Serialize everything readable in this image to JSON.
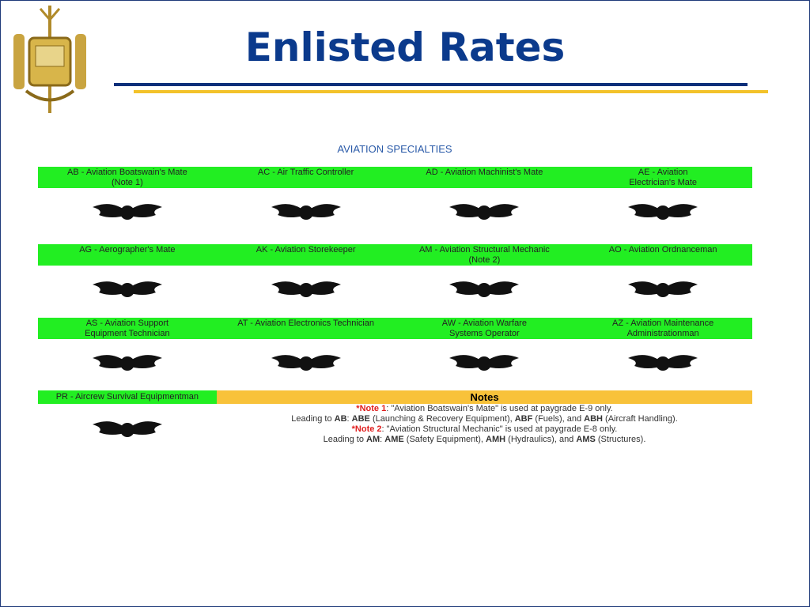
{
  "header": {
    "title": "Enlisted Rates"
  },
  "section_title": "AVIATION SPECIALTIES",
  "ratings": [
    {
      "lines": [
        "AB - Aviation Boatswain's Mate",
        "(Note 1)"
      ]
    },
    {
      "lines": [
        "AC - Air Traffic Controller"
      ]
    },
    {
      "lines": [
        "AD - Aviation Machinist's Mate"
      ]
    },
    {
      "lines": [
        "AE - Aviation",
        "Electrician's Mate"
      ]
    },
    {
      "lines": [
        "AG - Aerographer's Mate"
      ]
    },
    {
      "lines": [
        "AK - Aviation Storekeeper"
      ]
    },
    {
      "lines": [
        "AM - Aviation Structural Mechanic",
        "(Note 2)"
      ]
    },
    {
      "lines": [
        "AO - Aviation Ordnanceman"
      ]
    },
    {
      "lines": [
        "AS - Aviation Support",
        "Equipment Technician"
      ]
    },
    {
      "lines": [
        "AT - Aviation Electronics Technician"
      ]
    },
    {
      "lines": [
        "AW - Aviation Warfare",
        "Systems Operator"
      ]
    },
    {
      "lines": [
        "AZ - Aviation Maintenance",
        "Administrationman"
      ]
    },
    {
      "lines": [
        "PR - Aircrew Survival Equipmentman"
      ]
    }
  ],
  "notes": {
    "title": "Notes",
    "lines": [
      [
        {
          "text": "*Note 1",
          "style": "red"
        },
        {
          "text": ": \"Aviation Boatswain's Mate\" is used at paygrade E-9 only.",
          "style": "normal"
        }
      ],
      [
        {
          "text": "Leading to ",
          "style": "normal"
        },
        {
          "text": "AB",
          "style": "bold"
        },
        {
          "text": ": ",
          "style": "normal"
        },
        {
          "text": "ABE",
          "style": "bold"
        },
        {
          "text": " (Launching & Recovery Equipment), ",
          "style": "normal"
        },
        {
          "text": "ABF",
          "style": "bold"
        },
        {
          "text": " (Fuels), and ",
          "style": "normal"
        },
        {
          "text": "ABH",
          "style": "bold"
        },
        {
          "text": " (Aircraft Handling).",
          "style": "normal"
        }
      ],
      [
        {
          "text": "*Note 2",
          "style": "red"
        },
        {
          "text": ": \"Aviation Structural Mechanic\" is used at paygrade E-8 only.",
          "style": "normal"
        }
      ],
      [
        {
          "text": "Leading to ",
          "style": "normal"
        },
        {
          "text": "AM",
          "style": "bold"
        },
        {
          "text": ": ",
          "style": "normal"
        },
        {
          "text": "AME",
          "style": "bold"
        },
        {
          "text": " (Safety Equipment), ",
          "style": "normal"
        },
        {
          "text": "AMH",
          "style": "bold"
        },
        {
          "text": " (Hydraulics), and ",
          "style": "normal"
        },
        {
          "text": "AMS",
          "style": "bold"
        },
        {
          "text": " (Structures).",
          "style": "normal"
        }
      ]
    ]
  }
}
